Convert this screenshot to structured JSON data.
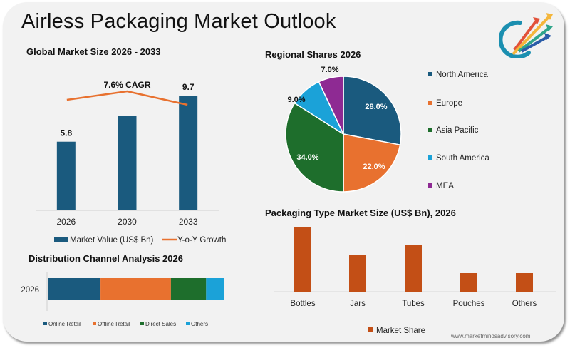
{
  "page": {
    "title": "Airless Packaging Market Outlook",
    "website": "www.marketmindsadvisory.com",
    "logo_icon": "rising-arrows-logo-icon"
  },
  "colors": {
    "navy": "#1a5a7e",
    "orange": "#e8712f",
    "green": "#1e6e2c",
    "sky": "#1ba2d8",
    "purple": "#8e2a93",
    "rust": "#c34f16",
    "line": "#e8712f"
  },
  "chart_data": [
    {
      "id": "global-market-size",
      "type": "bar",
      "title": "Global Market Size 2026 - 2033",
      "categories": [
        "2026",
        "2030",
        "2033"
      ],
      "series": [
        {
          "name": "Market Value (US$ Bn)",
          "values": [
            5.8,
            8.0,
            9.7
          ],
          "data_labels": [
            "5.8",
            "",
            "9.7"
          ],
          "color": "#1a5a7e"
        },
        {
          "name": "Y-o-Y Growth",
          "type": "line",
          "values": [
            7.5,
            7.9,
            7.2
          ],
          "color": "#e8712f"
        }
      ],
      "annotation": "7.6% CAGR",
      "xlabel": "",
      "ylabel": "",
      "ylim": [
        0,
        10.5
      ],
      "grid": false,
      "legend": "bottom"
    },
    {
      "id": "regional-shares",
      "type": "pie",
      "title": "Regional Shares 2026",
      "labels": [
        "North America",
        "Europe",
        "Asia Pacific",
        "South America",
        "MEA"
      ],
      "values": [
        28.0,
        22.0,
        34.0,
        9.0,
        7.0
      ],
      "data_labels": [
        "28.0%",
        "22.0%",
        "34.0%",
        "9.0%",
        "7.0%"
      ],
      "colors": [
        "#1a5a7e",
        "#e8712f",
        "#1e6e2c",
        "#1ba2d8",
        "#8e2a93"
      ],
      "legend": "right"
    },
    {
      "id": "distribution-channel",
      "type": "bar",
      "orientation": "horizontal-stacked",
      "title": "Distribution Channel Analysis 2026",
      "categories": [
        "2026"
      ],
      "series": [
        {
          "name": "Online Retail",
          "values": [
            30
          ],
          "color": "#1a5a7e"
        },
        {
          "name": "Offline Retail",
          "values": [
            40
          ],
          "color": "#e8712f"
        },
        {
          "name": "Direct Sales",
          "values": [
            20
          ],
          "color": "#1e6e2c"
        },
        {
          "name": "Others",
          "values": [
            10
          ],
          "color": "#1ba2d8"
        }
      ],
      "xlim": [
        0,
        100
      ],
      "legend": "bottom"
    },
    {
      "id": "packaging-type",
      "type": "bar",
      "title": "Packaging Type Market Size (US$ Bn), 2026",
      "categories": [
        "Bottles",
        "Jars",
        "Tubes",
        "Pouches",
        "Others"
      ],
      "series": [
        {
          "name": "Market Share",
          "values": [
            2.1,
            1.2,
            1.5,
            0.6,
            0.6
          ],
          "color": "#c34f16"
        }
      ],
      "ylim": [
        0,
        2.3
      ],
      "grid": false,
      "legend": "bottom"
    }
  ]
}
